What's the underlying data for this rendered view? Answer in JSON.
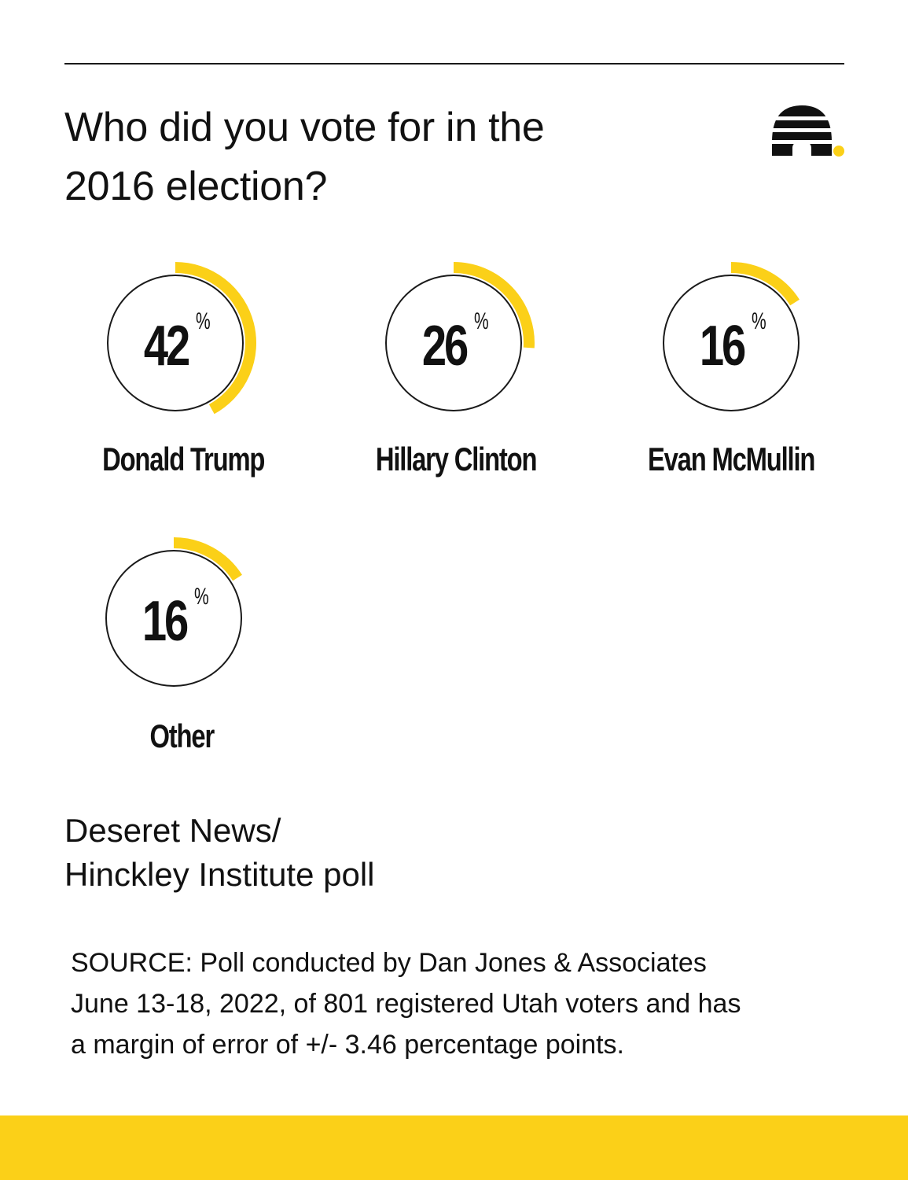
{
  "header": {
    "title_line1": "Who did you vote for in the",
    "title_line2": "2016 election?"
  },
  "icons": {
    "logo": "beehive-icon",
    "accent_color": "#fbd018"
  },
  "chart_data": {
    "type": "donut",
    "title": "Who did you vote for in the 2016 election?",
    "unit": "%",
    "categories": [
      "Donald Trump",
      "Hillary Clinton",
      "Evan McMullin",
      "Other"
    ],
    "values": [
      42,
      26,
      16,
      16
    ],
    "value_labels": [
      "42",
      "26",
      "16",
      "16"
    ],
    "percent_sign": "%",
    "ylim": [
      0,
      100
    ],
    "colors": {
      "fill": "#fbd018",
      "ring": "#1a1a1a"
    }
  },
  "footer": {
    "poll_line1": "Deseret News/",
    "poll_line2": "Hinckley Institute poll",
    "source_line1": "SOURCE: Poll conducted by Dan Jones & Associates",
    "source_line2": "June 13-18, 2022, of 801 registered Utah voters and has",
    "source_line3": "a margin of error of +/- 3.46 percentage points."
  }
}
